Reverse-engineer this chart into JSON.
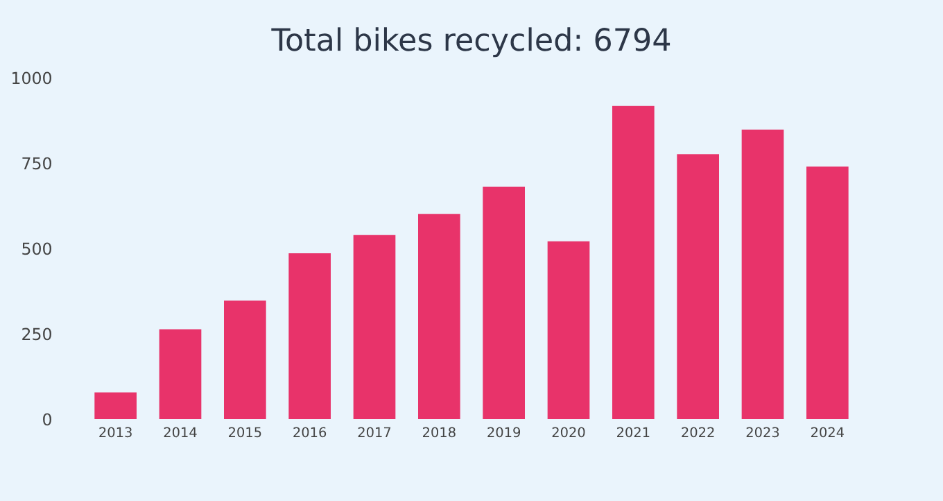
{
  "chart_data": {
    "type": "bar",
    "title": "Total bikes recycled: 6794",
    "categories": [
      "2013",
      "2014",
      "2015",
      "2016",
      "2017",
      "2018",
      "2019",
      "2020",
      "2021",
      "2022",
      "2023",
      "2024"
    ],
    "values": [
      78,
      263,
      347,
      486,
      539,
      601,
      681,
      521,
      917,
      776,
      848,
      740
    ],
    "color": "#e8336a",
    "ylim": [
      0,
      1000
    ],
    "yticks": [
      0,
      250,
      500,
      750,
      1000
    ],
    "grid": false
  }
}
